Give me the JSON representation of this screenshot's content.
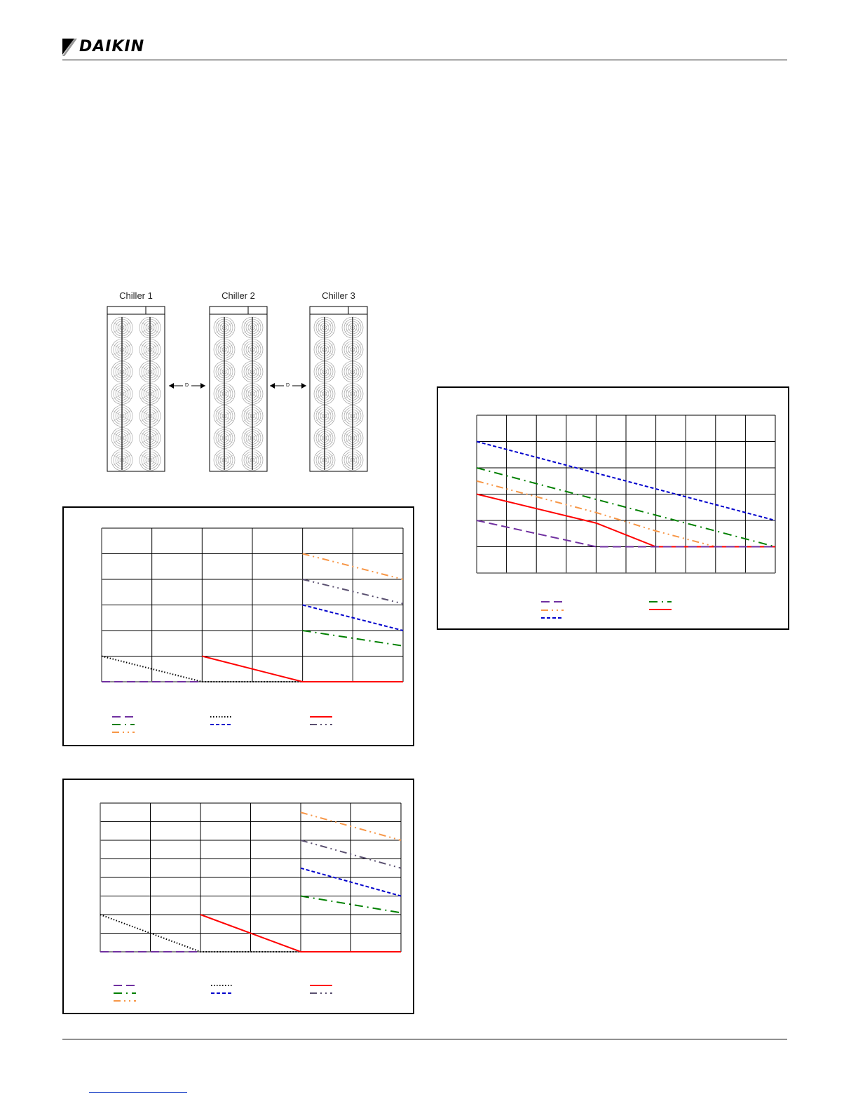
{
  "header": {
    "brand": "DAIKIN"
  },
  "diagram": {
    "chillers": [
      {
        "label": "Chiller 1"
      },
      {
        "label": "Chiller 2"
      },
      {
        "label": "Chiller 3"
      }
    ],
    "spacing_label": "D",
    "fans_per_column": 7,
    "fan_columns": 2
  },
  "chart_data": [
    {
      "type": "line",
      "title": "",
      "xlabel": "",
      "ylabel": "",
      "grid": true,
      "xlim": [
        0,
        6
      ],
      "ylim": [
        0,
        6
      ],
      "legend": "bottom",
      "series": [
        {
          "color": "#7030a0",
          "style": "long-dash",
          "points": [
            [
              0,
              0
            ],
            [
              2,
              0
            ]
          ]
        },
        {
          "color": "#000000",
          "style": "dotted",
          "points": [
            [
              0,
              1
            ],
            [
              2,
              0
            ],
            [
              4,
              0
            ]
          ]
        },
        {
          "color": "#ff0000",
          "style": "solid",
          "points": [
            [
              2,
              1
            ],
            [
              4,
              0
            ],
            [
              6,
              0
            ]
          ]
        },
        {
          "color": "#008000",
          "style": "dash-dot",
          "points": [
            [
              4,
              2
            ],
            [
              6,
              1.4
            ]
          ]
        },
        {
          "color": "#0000cc",
          "style": "dashed",
          "points": [
            [
              4,
              3
            ],
            [
              6,
              2
            ]
          ]
        },
        {
          "color": "#5a5070",
          "style": "dash-dot-dot",
          "points": [
            [
              4,
              4
            ],
            [
              6,
              3.05
            ]
          ]
        },
        {
          "color": "#f79646",
          "style": "dash-dot-dot",
          "points": [
            [
              4,
              5
            ],
            [
              6,
              4
            ]
          ]
        }
      ]
    },
    {
      "type": "line",
      "title": "",
      "xlabel": "",
      "ylabel": "",
      "grid": true,
      "xlim": [
        0,
        6
      ],
      "ylim": [
        0,
        8
      ],
      "legend": "bottom",
      "series": [
        {
          "color": "#7030a0",
          "style": "long-dash",
          "points": [
            [
              0,
              0
            ],
            [
              2,
              0
            ]
          ]
        },
        {
          "color": "#000000",
          "style": "dotted",
          "points": [
            [
              0,
              2
            ],
            [
              2,
              0
            ],
            [
              4,
              0
            ]
          ]
        },
        {
          "color": "#ff0000",
          "style": "solid",
          "points": [
            [
              2,
              2
            ],
            [
              4,
              0
            ],
            [
              6,
              0
            ]
          ]
        },
        {
          "color": "#008000",
          "style": "dash-dot",
          "points": [
            [
              4,
              3
            ],
            [
              6,
              2.1
            ]
          ]
        },
        {
          "color": "#0000cc",
          "style": "dashed",
          "points": [
            [
              4,
              4.5
            ],
            [
              6,
              3
            ]
          ]
        },
        {
          "color": "#5a5070",
          "style": "dash-dot-dot",
          "points": [
            [
              4,
              6
            ],
            [
              6,
              4.5
            ]
          ]
        },
        {
          "color": "#f79646",
          "style": "dash-dot-dot",
          "points": [
            [
              4,
              7.5
            ],
            [
              6,
              6
            ]
          ]
        }
      ]
    },
    {
      "type": "line",
      "title": "",
      "xlabel": "",
      "ylabel": "",
      "grid": true,
      "xlim": [
        0,
        10
      ],
      "ylim": [
        0,
        6
      ],
      "legend": "bottom",
      "series": [
        {
          "color": "#0000cc",
          "style": "dashed",
          "points": [
            [
              0,
              5
            ],
            [
              10,
              2
            ]
          ]
        },
        {
          "color": "#008000",
          "style": "dash-dot",
          "points": [
            [
              0,
              4
            ],
            [
              10,
              1
            ]
          ]
        },
        {
          "color": "#f79646",
          "style": "dash-dot-dot",
          "points": [
            [
              0,
              3.5
            ],
            [
              4,
              2.3
            ],
            [
              6,
              1.6
            ],
            [
              8,
              1.0
            ],
            [
              10,
              1
            ]
          ]
        },
        {
          "color": "#ff0000",
          "style": "solid",
          "points": [
            [
              0,
              3
            ],
            [
              4,
              1.9
            ],
            [
              6,
              1
            ],
            [
              10,
              1
            ]
          ]
        },
        {
          "color": "#7030a0",
          "style": "long-dash",
          "points": [
            [
              0,
              2
            ],
            [
              4,
              1
            ],
            [
              10,
              1
            ]
          ]
        }
      ]
    }
  ]
}
